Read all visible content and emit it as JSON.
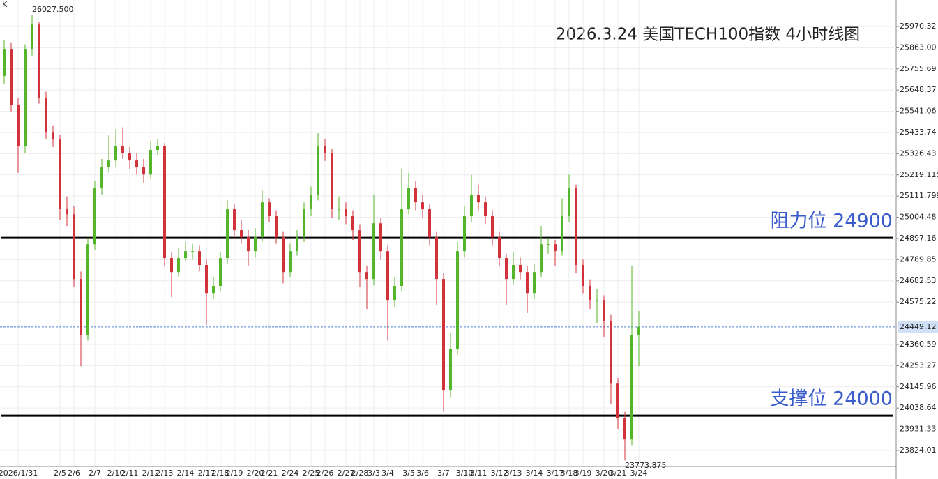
{
  "chart_data": {
    "type": "candlestick",
    "corner_label": "K",
    "title": "2026.3.24 美国TECH100指数 4小时线图",
    "ohlc": [
      [
        25720,
        25900,
        25680,
        25857
      ],
      [
        25857,
        25890,
        25540,
        25575
      ],
      [
        25575,
        25610,
        25230,
        25363
      ],
      [
        25363,
        25880,
        25330,
        25857
      ],
      [
        25857,
        26027.5,
        25820,
        25980
      ],
      [
        25980,
        25995,
        25580,
        25610
      ],
      [
        25610,
        25640,
        25400,
        25433
      ],
      [
        25433,
        25470,
        25360,
        25398
      ],
      [
        25398,
        25420,
        24990,
        25045
      ],
      [
        25045,
        25110,
        24960,
        25020
      ],
      [
        25020,
        25060,
        24650,
        24692
      ],
      [
        24692,
        24730,
        24250,
        24410
      ],
      [
        24410,
        24900,
        24380,
        24868
      ],
      [
        24868,
        25190,
        24840,
        25151
      ],
      [
        25151,
        25300,
        25120,
        25257
      ],
      [
        25257,
        25420,
        25230,
        25292
      ],
      [
        25292,
        25450,
        25260,
        25363
      ],
      [
        25363,
        25460,
        25300,
        25328
      ],
      [
        25328,
        25360,
        25250,
        25292
      ],
      [
        25292,
        25330,
        25220,
        25257
      ],
      [
        25257,
        25300,
        25180,
        25221
      ],
      [
        25221,
        25390,
        25200,
        25345
      ],
      [
        25345,
        25400,
        25320,
        25363
      ],
      [
        25363,
        25380,
        24760,
        24798
      ],
      [
        24798,
        24830,
        24600,
        24727
      ],
      [
        24727,
        24850,
        24700,
        24798
      ],
      [
        24798,
        24880,
        24780,
        24833
      ],
      [
        24833,
        24870,
        24790,
        24833
      ],
      [
        24833,
        24860,
        24730,
        24763
      ],
      [
        24763,
        24790,
        24460,
        24621
      ],
      [
        24621,
        24700,
        24590,
        24657
      ],
      [
        24657,
        24830,
        24630,
        24798
      ],
      [
        24798,
        25090,
        24770,
        25045
      ],
      [
        25045,
        25070,
        24900,
        24939
      ],
      [
        24939,
        24990,
        24870,
        24904
      ],
      [
        24904,
        24940,
        24760,
        24833
      ],
      [
        24833,
        24950,
        24800,
        24904
      ],
      [
        24904,
        25140,
        24880,
        25080
      ],
      [
        25080,
        25100,
        24980,
        25010
      ],
      [
        25010,
        25040,
        24870,
        24904
      ],
      [
        24904,
        24930,
        24670,
        24727
      ],
      [
        24727,
        24870,
        24700,
        24833
      ],
      [
        24833,
        24940,
        24810,
        24904
      ],
      [
        24904,
        25080,
        24880,
        25045
      ],
      [
        25045,
        25160,
        25010,
        25116
      ],
      [
        25116,
        25430,
        25090,
        25363
      ],
      [
        25363,
        25400,
        25290,
        25328
      ],
      [
        25328,
        25350,
        25000,
        25045
      ],
      [
        25045,
        25110,
        24990,
        25045
      ],
      [
        25045,
        25080,
        24970,
        25010
      ],
      [
        25010,
        25040,
        24890,
        24939
      ],
      [
        24939,
        24970,
        24650,
        24727
      ],
      [
        24727,
        24760,
        24540,
        24692
      ],
      [
        24692,
        25120,
        24660,
        24974
      ],
      [
        24974,
        25000,
        24790,
        24833
      ],
      [
        24833,
        24860,
        24380,
        24586
      ],
      [
        24586,
        24700,
        24550,
        24657
      ],
      [
        24657,
        25250,
        24630,
        25045
      ],
      [
        25045,
        25230,
        25020,
        25151
      ],
      [
        25151,
        25190,
        25040,
        25080
      ],
      [
        25080,
        25120,
        25000,
        25045
      ],
      [
        25045,
        25070,
        24860,
        24904
      ],
      [
        24904,
        24930,
        24560,
        24692
      ],
      [
        24692,
        24720,
        24020,
        24127
      ],
      [
        24127,
        24420,
        24090,
        24339
      ],
      [
        24339,
        24880,
        24310,
        24833
      ],
      [
        24833,
        25060,
        24800,
        25010
      ],
      [
        25010,
        25220,
        24980,
        25116
      ],
      [
        25116,
        25170,
        25040,
        25080
      ],
      [
        25080,
        25110,
        24970,
        25010
      ],
      [
        25010,
        25040,
        24860,
        24904
      ],
      [
        24904,
        24930,
        24760,
        24798
      ],
      [
        24798,
        24820,
        24560,
        24692
      ],
      [
        24692,
        24830,
        24660,
        24763
      ],
      [
        24763,
        24800,
        24690,
        24727
      ],
      [
        24727,
        24760,
        24520,
        24621
      ],
      [
        24621,
        24770,
        24590,
        24727
      ],
      [
        24727,
        24960,
        24700,
        24868
      ],
      [
        24868,
        24900,
        24820,
        24868
      ],
      [
        24868,
        24890,
        24760,
        24833
      ],
      [
        24833,
        25100,
        24810,
        25010
      ],
      [
        25010,
        25220,
        24980,
        25151
      ],
      [
        25151,
        25170,
        24720,
        24763
      ],
      [
        24763,
        24790,
        24620,
        24657
      ],
      [
        24657,
        24690,
        24540,
        24586
      ],
      [
        24586,
        24640,
        24470,
        24586
      ],
      [
        24586,
        24610,
        24400,
        24480
      ],
      [
        24480,
        24510,
        24060,
        24162
      ],
      [
        24162,
        24190,
        23930,
        23986
      ],
      [
        23986,
        24020,
        23773.875,
        23880
      ],
      [
        23880,
        24760,
        23850,
        24410
      ],
      [
        24410,
        24530,
        24250,
        24449.12
      ]
    ],
    "up_color": "#52b52a",
    "down_color": "#d2323a",
    "ylim": [
      23746.3,
      26104.4
    ],
    "yticks": [
      25970.32,
      {
        "value": 25863,
        "label": "25863.00"
      },
      25755.69,
      25648.37,
      25541.06,
      25433.74,
      25326.43,
      25219.115,
      25111.799,
      25004.48,
      24897.16,
      24789.85,
      24682.53,
      24575.22,
      24360.59,
      24253.27,
      24145.96,
      24038.64,
      23931.33,
      23824.01
    ],
    "xticks": [
      {
        "value": 2,
        "label": "2026/1/31"
      },
      {
        "value": 8,
        "label": "2/5"
      },
      {
        "value": 10,
        "label": "2/6"
      },
      {
        "value": 13,
        "label": "2/7"
      },
      {
        "value": 16,
        "label": "2/10"
      },
      {
        "value": 18,
        "label": "2/11"
      },
      {
        "value": 21,
        "label": "2/12"
      },
      {
        "value": 23,
        "label": "2/13"
      },
      {
        "value": 26,
        "label": "2/14"
      },
      {
        "value": 29,
        "label": "2/17"
      },
      {
        "value": 31,
        "label": "2/18"
      },
      {
        "value": 33,
        "label": "2/19"
      },
      {
        "value": 36,
        "label": "2/20"
      },
      {
        "value": 38,
        "label": "2/21"
      },
      {
        "value": 41,
        "label": "2/24"
      },
      {
        "value": 44,
        "label": "2/25"
      },
      {
        "value": 46,
        "label": "2/26"
      },
      {
        "value": 49,
        "label": "2/27"
      },
      {
        "value": 51,
        "label": "2/28"
      },
      {
        "value": 53,
        "label": "3/3"
      },
      {
        "value": 55,
        "label": "3/4"
      },
      {
        "value": 58,
        "label": "3/5"
      },
      {
        "value": 60,
        "label": "3/6"
      },
      {
        "value": 63,
        "label": "3/7"
      },
      {
        "value": 66,
        "label": "3/10"
      },
      {
        "value": 68,
        "label": "3/11"
      },
      {
        "value": 71,
        "label": "3/12"
      },
      {
        "value": 73,
        "label": "3/13"
      },
      {
        "value": 76,
        "label": "3/14"
      },
      {
        "value": 79,
        "label": "3/17"
      },
      {
        "value": 81,
        "label": "3/18"
      },
      {
        "value": 83,
        "label": "3/19"
      },
      {
        "value": 86,
        "label": "3/20"
      },
      {
        "value": 88,
        "label": "3/21"
      },
      {
        "value": 91,
        "label": "3/24"
      }
    ],
    "grid": true,
    "levels": [
      {
        "value": 24900,
        "label": "阻力位 24900",
        "color": "#3a5ccc"
      },
      {
        "value": 24000,
        "label": "支撑位 24000",
        "color": "#3a5ccc"
      }
    ],
    "current_price": 24449.12,
    "annotations": [
      {
        "index": 4,
        "value": 26027.5,
        "label": "26027.500"
      },
      {
        "index": 89,
        "value": 23773.875,
        "label": "23773.875"
      }
    ]
  }
}
